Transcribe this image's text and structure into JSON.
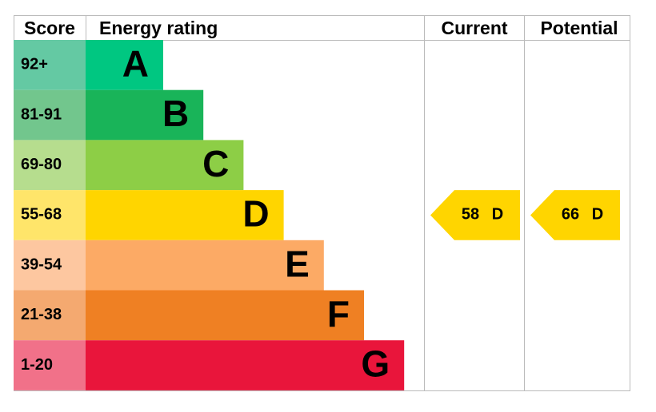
{
  "header": {
    "score": "Score",
    "rating": "Energy rating",
    "current": "Current",
    "potential": "Potential"
  },
  "bands": [
    {
      "score": "92+",
      "letter": "A",
      "color": "#00c781",
      "score_color": "#64c9a3"
    },
    {
      "score": "81-91",
      "letter": "B",
      "color": "#19b459",
      "score_color": "#72c68d"
    },
    {
      "score": "69-80",
      "letter": "C",
      "color": "#8dce46",
      "score_color": "#b6dd8e"
    },
    {
      "score": "55-68",
      "letter": "D",
      "color": "#ffd500",
      "score_color": "#ffe56a"
    },
    {
      "score": "39-54",
      "letter": "E",
      "color": "#fcaa65",
      "score_color": "#fdc7a0"
    },
    {
      "score": "21-38",
      "letter": "F",
      "color": "#ef8023",
      "score_color": "#f4a970"
    },
    {
      "score": "1-20",
      "letter": "G",
      "color": "#e9153b",
      "score_color": "#f17189"
    }
  ],
  "current": {
    "value": 58,
    "letter": "D"
  },
  "potential": {
    "value": 66,
    "letter": "D"
  }
}
